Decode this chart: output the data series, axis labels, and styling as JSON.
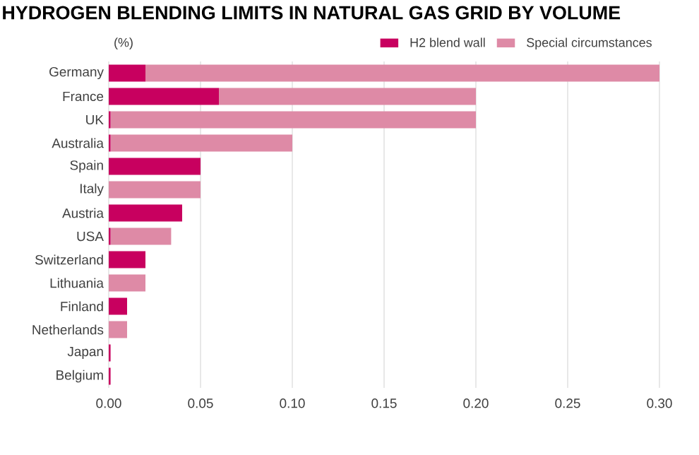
{
  "chart_data": {
    "type": "bar",
    "orientation": "horizontal",
    "stacked": true,
    "title": "HYDROGEN BLENDING LIMITS IN NATURAL GAS GRID BY VOLUME",
    "xlabel": "(%)",
    "categories": [
      "Germany",
      "France",
      "UK",
      "Australia",
      "Spain",
      "Italy",
      "Austria",
      "USA",
      "Switzerland",
      "Lithuania",
      "Finland",
      "Netherlands",
      "Japan",
      "Belgium"
    ],
    "series": [
      {
        "name": "H2 blend wall",
        "color": "#c8005f",
        "values": [
          0.02,
          0.06,
          0.001,
          0.001,
          0.05,
          0,
          0.04,
          0.001,
          0.02,
          0,
          0.01,
          0,
          0.001,
          0.001
        ]
      },
      {
        "name": "Special circumstances",
        "color": "#de8aa6",
        "values": [
          0.28,
          0.14,
          0.199,
          0.099,
          0,
          0.05,
          0,
          0.033,
          0,
          0.02,
          0,
          0.01,
          0,
          0
        ]
      }
    ],
    "xlim": [
      0,
      0.3
    ],
    "xticks": [
      {
        "value": 0,
        "label": "0.00"
      },
      {
        "value": 0.05,
        "label": "0.05"
      },
      {
        "value": 0.1,
        "label": "0.10"
      },
      {
        "value": 0.15,
        "label": "0.15"
      },
      {
        "value": 0.2,
        "label": "0.20"
      },
      {
        "value": 0.25,
        "label": "0.25"
      },
      {
        "value": 0.3,
        "label": "0.30"
      }
    ],
    "grid": "x",
    "legend": "top right"
  }
}
